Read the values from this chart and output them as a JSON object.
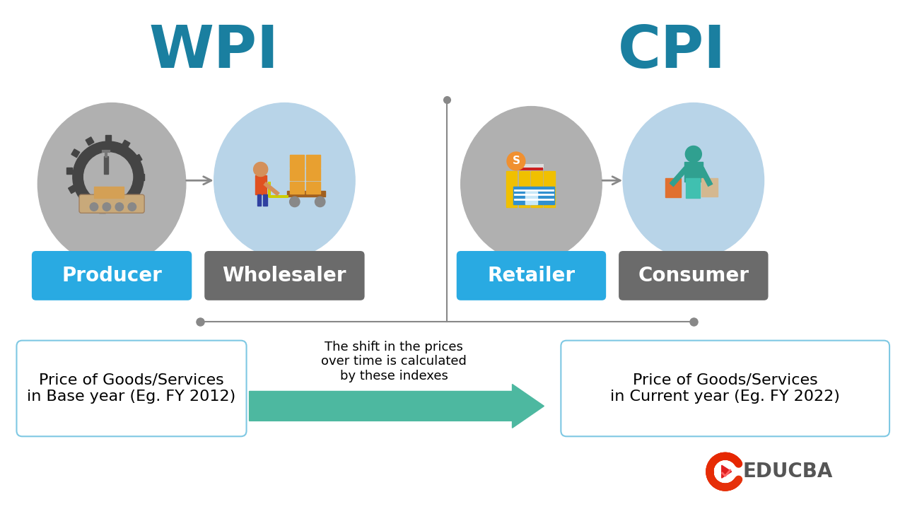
{
  "background_color": "#ffffff",
  "wpi_label": "WPI",
  "cpi_label": "CPI",
  "title_color": "#1a7fa0",
  "producer_label": "Producer",
  "wholesaler_label": "Wholesaler",
  "retailer_label": "Retailer",
  "consumer_label": "Consumer",
  "producer_box_color": "#29aae2",
  "wholesaler_box_color": "#6b6b6b",
  "retailer_box_color": "#29aae2",
  "consumer_box_color": "#6b6b6b",
  "divider_color": "#888888",
  "connector_arrow_color": "#888888",
  "bottom_arrow_color": "#4db8a0",
  "box_border_color": "#7ec8e3",
  "base_year_text": "Price of Goods/Services\nin Base year (Eg. FY 2012)",
  "current_year_text": "Price of Goods/Services\nin Current year (Eg. FY 2022)",
  "middle_text": "The shift in the prices\nover time is calculated\nby these indexes",
  "producer_circle_color": "#b0b0b0",
  "wholesaler_circle_color": "#b8d4e8",
  "retailer_circle_color": "#b0b0b0",
  "consumer_circle_color": "#b8d4e8",
  "educba_text": "EDUCBA",
  "educba_text_color": "#555555"
}
